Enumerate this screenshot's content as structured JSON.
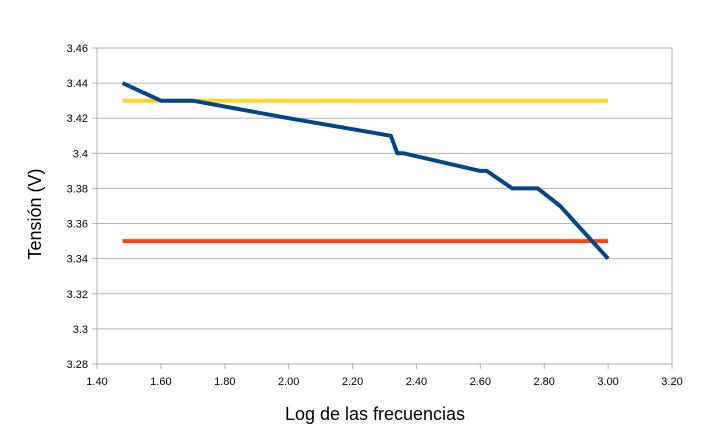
{
  "chart_data": {
    "type": "line",
    "title": "",
    "xlabel": "Log de las frecuencias",
    "ylabel": "Tensión (V)",
    "xlim": [
      1.4,
      3.2
    ],
    "ylim": [
      3.28,
      3.46
    ],
    "x_ticks": [
      1.4,
      1.6,
      1.8,
      2.0,
      2.2,
      2.4,
      2.6,
      2.8,
      3.0,
      3.2
    ],
    "x_tick_labels": [
      "1.40",
      "1.60",
      "1.80",
      "2.00",
      "2.20",
      "2.40",
      "2.60",
      "2.80",
      "3.00",
      "3.20"
    ],
    "y_ticks": [
      3.28,
      3.3,
      3.32,
      3.34,
      3.36,
      3.38,
      3.4,
      3.42,
      3.44,
      3.46
    ],
    "y_tick_labels": [
      "3.28",
      "3.3",
      "3.32",
      "3.34",
      "3.36",
      "3.38",
      "3.4",
      "3.42",
      "3.44",
      "3.46"
    ],
    "grid": "horizontal",
    "legend": "none",
    "series": [
      {
        "color": "#004586",
        "x": [
          1.48,
          1.6,
          1.7,
          2.0,
          2.32,
          2.34,
          2.36,
          2.6,
          2.62,
          2.7,
          2.78,
          2.85,
          2.9,
          2.95,
          3.0
        ],
        "y": [
          3.44,
          3.43,
          3.43,
          3.42,
          3.41,
          3.4,
          3.4,
          3.39,
          3.39,
          3.38,
          3.38,
          3.37,
          3.36,
          3.35,
          3.34
        ]
      },
      {
        "color": "#ffd320",
        "x": [
          1.48,
          3.0
        ],
        "y": [
          3.43,
          3.43
        ]
      },
      {
        "color": "#ff420e",
        "x": [
          1.48,
          3.0
        ],
        "y": [
          3.35,
          3.35
        ]
      }
    ]
  }
}
